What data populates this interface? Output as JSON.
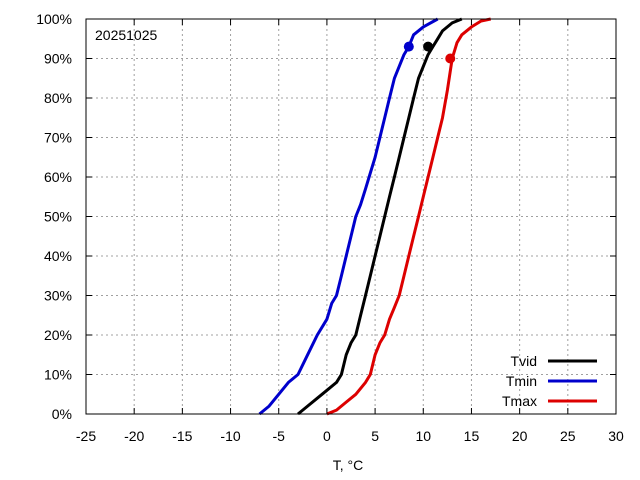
{
  "chart_data": {
    "type": "line",
    "annotation": "20251025",
    "xlabel": "T, °C",
    "ylabel": "",
    "xlim": [
      -25,
      30
    ],
    "ylim": [
      0,
      100
    ],
    "x_ticks": [
      -25,
      -20,
      -15,
      -10,
      -5,
      0,
      5,
      10,
      15,
      20,
      25,
      30
    ],
    "y_ticks": [
      0,
      10,
      20,
      30,
      40,
      50,
      60,
      70,
      80,
      90,
      100
    ],
    "y_tick_labels": [
      "0%",
      "10%",
      "20%",
      "30%",
      "40%",
      "50%",
      "60%",
      "70%",
      "80%",
      "90%",
      "100%"
    ],
    "grid": true,
    "legend_position": "bottom-right",
    "series": [
      {
        "name": "Tvid",
        "color": "#000000",
        "points": [
          [
            -3,
            0
          ],
          [
            -2,
            2
          ],
          [
            -1,
            4
          ],
          [
            0,
            6
          ],
          [
            1,
            8
          ],
          [
            1.5,
            10
          ],
          [
            2,
            15
          ],
          [
            2.5,
            18
          ],
          [
            3,
            20
          ],
          [
            3.5,
            25
          ],
          [
            4,
            30
          ],
          [
            4.5,
            35
          ],
          [
            5,
            40
          ],
          [
            5.5,
            45
          ],
          [
            6,
            50
          ],
          [
            6.5,
            55
          ],
          [
            7,
            60
          ],
          [
            7.5,
            65
          ],
          [
            8,
            70
          ],
          [
            8.5,
            75
          ],
          [
            9,
            80
          ],
          [
            9.5,
            85
          ],
          [
            10,
            88
          ],
          [
            10.5,
            91
          ],
          [
            11,
            93
          ],
          [
            11.5,
            95
          ],
          [
            12,
            97
          ],
          [
            13,
            99
          ],
          [
            14,
            100
          ]
        ],
        "marker": [
          10.5,
          93
        ]
      },
      {
        "name": "Tmin",
        "color": "#0000cc",
        "points": [
          [
            -7,
            0
          ],
          [
            -6,
            2
          ],
          [
            -5,
            5
          ],
          [
            -4,
            8
          ],
          [
            -3,
            10
          ],
          [
            -2,
            15
          ],
          [
            -1,
            20
          ],
          [
            0,
            24
          ],
          [
            0.5,
            28
          ],
          [
            1,
            30
          ],
          [
            1.5,
            35
          ],
          [
            2,
            40
          ],
          [
            2.5,
            45
          ],
          [
            3,
            50
          ],
          [
            3.5,
            53
          ],
          [
            4,
            57
          ],
          [
            4.5,
            61
          ],
          [
            5,
            65
          ],
          [
            5.5,
            70
          ],
          [
            6,
            75
          ],
          [
            6.5,
            80
          ],
          [
            7,
            85
          ],
          [
            7.5,
            88
          ],
          [
            8,
            91
          ],
          [
            8.5,
            93
          ],
          [
            9,
            96
          ],
          [
            10,
            98
          ],
          [
            11.5,
            100
          ]
        ],
        "marker": [
          8.5,
          93
        ]
      },
      {
        "name": "Tmax",
        "color": "#dd0000",
        "points": [
          [
            0,
            0
          ],
          [
            1,
            1
          ],
          [
            2,
            3
          ],
          [
            3,
            5
          ],
          [
            4,
            8
          ],
          [
            4.5,
            10
          ],
          [
            5,
            15
          ],
          [
            5.5,
            18
          ],
          [
            6,
            20
          ],
          [
            6.5,
            24
          ],
          [
            7,
            27
          ],
          [
            7.5,
            30
          ],
          [
            8,
            35
          ],
          [
            8.5,
            40
          ],
          [
            9,
            45
          ],
          [
            9.5,
            50
          ],
          [
            10,
            55
          ],
          [
            10.5,
            60
          ],
          [
            11,
            65
          ],
          [
            11.5,
            70
          ],
          [
            12,
            75
          ],
          [
            12.5,
            82
          ],
          [
            13,
            90
          ],
          [
            13.5,
            94
          ],
          [
            14,
            96
          ],
          [
            15,
            98
          ],
          [
            16,
            99.5
          ],
          [
            17,
            100
          ]
        ],
        "marker": [
          12.8,
          90
        ]
      }
    ]
  }
}
